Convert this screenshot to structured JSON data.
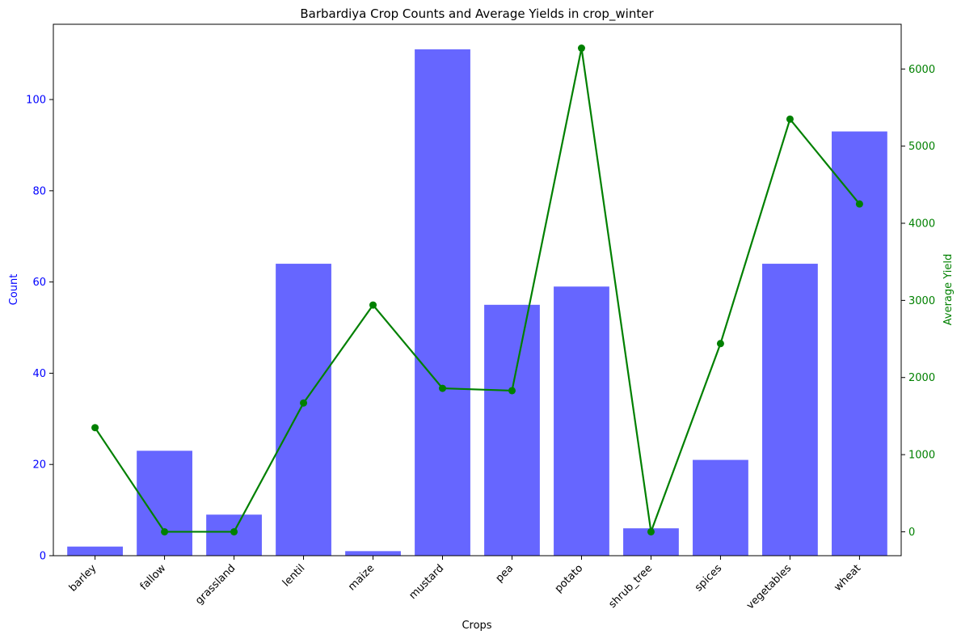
{
  "chart_data": {
    "type": "bar",
    "title": "Barbardiya Crop Counts and Average Yields in crop_winter",
    "xlabel": "Crops",
    "ylabel": "Count",
    "ylabel_right": "Average Yield",
    "categories": [
      "barley",
      "fallow",
      "grassland",
      "lentil",
      "maize",
      "mustard",
      "pea",
      "potato",
      "shrub_tree",
      "spices",
      "vegetables",
      "wheat"
    ],
    "series": [
      {
        "type": "bar",
        "axis": "left",
        "color": "#6666ff",
        "values": [
          2,
          23,
          9,
          64,
          1,
          111,
          55,
          59,
          6,
          21,
          64,
          93
        ]
      },
      {
        "type": "line",
        "axis": "right",
        "color": "#008000",
        "values": [
          1350,
          0,
          0,
          1670,
          2940,
          1860,
          1830,
          6270,
          0,
          2440,
          5350,
          4250
        ]
      }
    ],
    "ylim": [
      0,
      116.5
    ],
    "yticks": [
      0,
      20,
      40,
      60,
      80,
      100
    ],
    "ylim_right": [
      -310,
      6580
    ],
    "yticks_right": [
      0,
      1000,
      2000,
      3000,
      4000,
      5000,
      6000
    ],
    "left_axis_color": "#0000ff",
    "right_axis_color": "#008000",
    "grid": false,
    "legend": "none"
  }
}
